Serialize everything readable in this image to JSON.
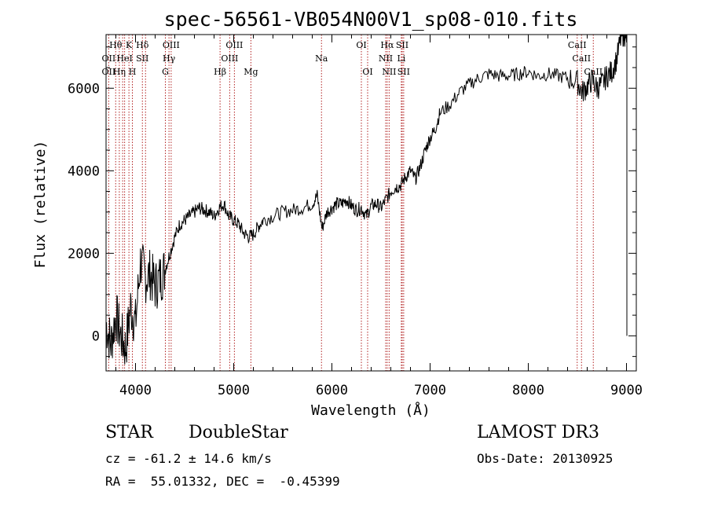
{
  "chart_data": {
    "type": "line",
    "title": "spec-56561-VB054N00V1_sp08-010.fits",
    "xlabel": "Wavelength (Å)",
    "ylabel": "Flux (relative)",
    "xlim": [
      3700,
      9100
    ],
    "ylim": [
      -850,
      7300
    ],
    "xticks": [
      4000,
      5000,
      6000,
      7000,
      8000,
      9000
    ],
    "xtick_labels": [
      "4000",
      "5000",
      "6000",
      "7000",
      "8000",
      "9000"
    ],
    "yticks": [
      0,
      2000,
      4000,
      6000
    ],
    "ytick_labels": [
      "0",
      "2000",
      "4000",
      "6000"
    ],
    "grid": false,
    "series": [
      {
        "name": "spectrum",
        "x": [
          3700,
          3750,
          3800,
          3850,
          3900,
          3950,
          4000,
          4050,
          4100,
          4150,
          4200,
          4250,
          4300,
          4350,
          4400,
          4450,
          4500,
          4550,
          4600,
          4650,
          4700,
          4750,
          4800,
          4850,
          4900,
          4950,
          5000,
          5050,
          5100,
          5150,
          5200,
          5250,
          5300,
          5400,
          5500,
          5600,
          5700,
          5800,
          5850,
          5900,
          5950,
          6000,
          6050,
          6100,
          6150,
          6200,
          6250,
          6300,
          6350,
          6400,
          6450,
          6500,
          6550,
          6600,
          6650,
          6700,
          6750,
          6800,
          6850,
          6900,
          6950,
          7000,
          7050,
          7100,
          7200,
          7300,
          7400,
          7500,
          7600,
          7700,
          7800,
          7900,
          8000,
          8100,
          8200,
          8300,
          8400,
          8500,
          8550,
          8600,
          8650,
          8700,
          8750,
          8800,
          8850,
          8900,
          8950,
          8980,
          9000
        ],
        "y": [
          300,
          -200,
          500,
          0,
          -300,
          700,
          300,
          1800,
          1400,
          1500,
          1200,
          1400,
          1600,
          2000,
          2400,
          2700,
          2800,
          2900,
          3000,
          3100,
          3050,
          3000,
          2900,
          3100,
          3200,
          2900,
          2800,
          2700,
          2500,
          2400,
          2450,
          2650,
          2800,
          2900,
          3000,
          3050,
          3100,
          3200,
          3400,
          2600,
          3000,
          3100,
          3200,
          3200,
          3300,
          3150,
          3050,
          3100,
          2900,
          3150,
          3200,
          3100,
          3300,
          3500,
          3600,
          3650,
          3850,
          4000,
          3800,
          4100,
          4500,
          4800,
          5000,
          5400,
          5600,
          5900,
          6100,
          6250,
          6350,
          6300,
          6300,
          6350,
          6400,
          6300,
          6350,
          6300,
          6250,
          6150,
          5900,
          6050,
          6200,
          6000,
          6100,
          6300,
          6400,
          6700,
          7300,
          7300,
          7300
        ]
      }
    ],
    "annotations": {
      "lines": [
        {
          "x": 3727,
          "color": "#b22222"
        },
        {
          "x": 3798,
          "color": "#b22222"
        },
        {
          "x": 3835,
          "color": "#b22222"
        },
        {
          "x": 3869,
          "color": "#b22222"
        },
        {
          "x": 3889,
          "color": "#b22222"
        },
        {
          "x": 3933,
          "color": "#b22222"
        },
        {
          "x": 3968,
          "color": "#b22222"
        },
        {
          "x": 4070,
          "color": "#b22222"
        },
        {
          "x": 4102,
          "color": "#b22222"
        },
        {
          "x": 4304,
          "color": "#b22222"
        },
        {
          "x": 4341,
          "color": "#b22222"
        },
        {
          "x": 4363,
          "color": "#b22222"
        },
        {
          "x": 4861,
          "color": "#b22222"
        },
        {
          "x": 4959,
          "color": "#b22222"
        },
        {
          "x": 5007,
          "color": "#b22222"
        },
        {
          "x": 5175,
          "color": "#b22222"
        },
        {
          "x": 5894,
          "color": "#b22222"
        },
        {
          "x": 6300,
          "color": "#b22222"
        },
        {
          "x": 6364,
          "color": "#b22222"
        },
        {
          "x": 6548,
          "color": "#b22222"
        },
        {
          "x": 6563,
          "color": "#b22222"
        },
        {
          "x": 6583,
          "color": "#b22222"
        },
        {
          "x": 6707,
          "color": "#b22222"
        },
        {
          "x": 6716,
          "color": "#b22222"
        },
        {
          "x": 6731,
          "color": "#b22222"
        },
        {
          "x": 8498,
          "color": "#b22222"
        },
        {
          "x": 8542,
          "color": "#b22222"
        },
        {
          "x": 8662,
          "color": "#b22222"
        }
      ],
      "labels": [
        {
          "text": "Hθ",
          "x": 3798,
          "row": 0
        },
        {
          "text": "K",
          "x": 3933,
          "row": 0
        },
        {
          "text": "Hδ",
          "x": 4070,
          "row": 0
        },
        {
          "text": "OIII",
          "x": 4363,
          "row": 0
        },
        {
          "text": "OIII",
          "x": 5007,
          "row": 0
        },
        {
          "text": "OI",
          "x": 6300,
          "row": 0
        },
        {
          "text": "Hα",
          "x": 6563,
          "row": 0
        },
        {
          "text": "SII",
          "x": 6716,
          "row": 0
        },
        {
          "text": "CaII",
          "x": 8498,
          "row": 0
        },
        {
          "text": "OII",
          "x": 3727,
          "row": 1
        },
        {
          "text": "HeI",
          "x": 3889,
          "row": 1
        },
        {
          "text": "SII",
          "x": 4070,
          "row": 1
        },
        {
          "text": "Hγ",
          "x": 4341,
          "row": 1
        },
        {
          "text": "OIII",
          "x": 4959,
          "row": 1
        },
        {
          "text": "Na",
          "x": 5894,
          "row": 1
        },
        {
          "text": "NII",
          "x": 6548,
          "row": 1
        },
        {
          "text": "Li",
          "x": 6707,
          "row": 1
        },
        {
          "text": "CaII",
          "x": 8542,
          "row": 1
        },
        {
          "text": "OII",
          "x": 3727,
          "row": 2
        },
        {
          "text": "Hη",
          "x": 3835,
          "row": 2
        },
        {
          "text": "H",
          "x": 3968,
          "row": 2
        },
        {
          "text": "G",
          "x": 4304,
          "row": 2
        },
        {
          "text": "Hβ",
          "x": 4861,
          "row": 2
        },
        {
          "text": "Mg",
          "x": 5175,
          "row": 2
        },
        {
          "text": "OI",
          "x": 6364,
          "row": 2
        },
        {
          "text": "NII",
          "x": 6583,
          "row": 2
        },
        {
          "text": "SII",
          "x": 6731,
          "row": 2
        },
        {
          "text": "CaII",
          "x": 8662,
          "row": 2
        }
      ]
    }
  },
  "footer": {
    "object_class": "STAR",
    "subclass": "DoubleStar",
    "survey": "LAMOST DR3",
    "redshift": "cz = -61.2 ± 14.6 km/s",
    "obs_date": "Obs-Date: 20130925",
    "coords": "RA =  55.01332, DEC =  -0.45399"
  }
}
